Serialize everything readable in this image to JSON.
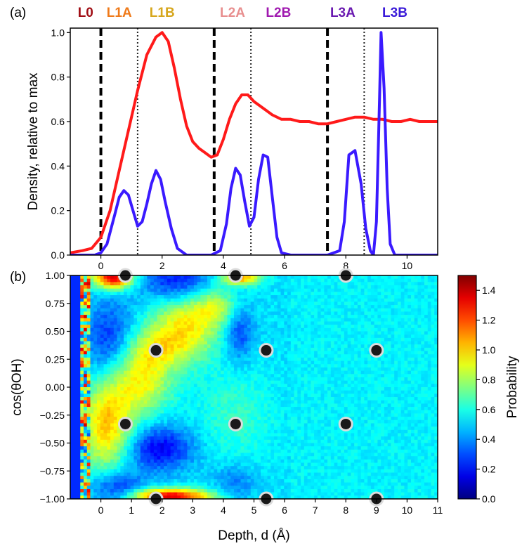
{
  "figure": {
    "panel_a_label": "(a)",
    "panel_b_label": "(b)"
  },
  "layer_labels": [
    {
      "text": "L0",
      "color": "#a00d14",
      "x": -0.5
    },
    {
      "text": "L1A",
      "color": "#ef7a1a",
      "x": 0.6
    },
    {
      "text": "L1B",
      "color": "#d6a61c",
      "x": 2.0
    },
    {
      "text": "L2A",
      "color": "#e88f8f",
      "x": 4.3
    },
    {
      "text": "L2B",
      "color": "#a01ab0",
      "x": 5.8
    },
    {
      "text": "L3A",
      "color": "#6a1ab0",
      "x": 7.9
    },
    {
      "text": "L3B",
      "color": "#3a1ad8",
      "x": 9.6
    }
  ],
  "chart_data": [
    {
      "id": "panel-a",
      "type": "line",
      "ylabel": "Density, relative to max",
      "xlabel": "",
      "xlim": [
        -1,
        11
      ],
      "ylim": [
        0,
        1.02
      ],
      "xticks": [
        0,
        2,
        4,
        6,
        8,
        10
      ],
      "xtick_labels": [
        "0",
        "2",
        "4",
        "6",
        "8",
        "10"
      ],
      "yticks": [
        0,
        0.2,
        0.4,
        0.6,
        0.8,
        1.0
      ],
      "ytick_labels": [
        "0.0",
        "0.2",
        "0.4",
        "0.6",
        "0.8",
        "1.0"
      ],
      "vlines_dashed": [
        0,
        3.7,
        7.4
      ],
      "vlines_dotted": [
        1.2,
        4.9,
        8.6
      ],
      "series": [
        {
          "name": "red",
          "color": "#ff1a1a",
          "x": [
            -1.0,
            -0.6,
            -0.3,
            0.0,
            0.3,
            0.6,
            0.9,
            1.2,
            1.5,
            1.8,
            2.0,
            2.2,
            2.4,
            2.6,
            2.8,
            3.0,
            3.2,
            3.4,
            3.6,
            3.8,
            4.0,
            4.2,
            4.4,
            4.6,
            4.8,
            5.0,
            5.3,
            5.6,
            5.9,
            6.2,
            6.5,
            6.8,
            7.1,
            7.4,
            7.7,
            8.0,
            8.3,
            8.6,
            8.9,
            9.2,
            9.5,
            9.8,
            10.1,
            10.4,
            10.7,
            11.0
          ],
          "y": [
            0.01,
            0.02,
            0.03,
            0.08,
            0.2,
            0.38,
            0.56,
            0.74,
            0.9,
            0.98,
            1.0,
            0.96,
            0.84,
            0.7,
            0.58,
            0.51,
            0.48,
            0.46,
            0.44,
            0.45,
            0.52,
            0.61,
            0.68,
            0.72,
            0.72,
            0.69,
            0.66,
            0.63,
            0.61,
            0.61,
            0.6,
            0.6,
            0.59,
            0.59,
            0.6,
            0.61,
            0.62,
            0.62,
            0.61,
            0.61,
            0.6,
            0.6,
            0.61,
            0.6,
            0.6,
            0.6
          ]
        },
        {
          "name": "blue",
          "color": "#3a1aff",
          "x": [
            -1.0,
            -0.2,
            0.0,
            0.2,
            0.45,
            0.6,
            0.75,
            0.9,
            1.05,
            1.2,
            1.35,
            1.5,
            1.65,
            1.8,
            1.95,
            2.1,
            2.3,
            2.5,
            2.8,
            3.2,
            3.6,
            3.9,
            4.1,
            4.25,
            4.4,
            4.55,
            4.7,
            4.85,
            5.0,
            5.15,
            5.3,
            5.45,
            5.6,
            5.75,
            5.9,
            6.2,
            6.6,
            7.0,
            7.4,
            7.8,
            7.95,
            8.1,
            8.3,
            8.5,
            8.65,
            8.8,
            8.9,
            9.0,
            9.1,
            9.15,
            9.25,
            9.35,
            9.45,
            9.6,
            10.0,
            11.0
          ],
          "y": [
            0.0,
            0.0,
            0.01,
            0.05,
            0.18,
            0.26,
            0.29,
            0.27,
            0.2,
            0.13,
            0.15,
            0.23,
            0.32,
            0.38,
            0.34,
            0.24,
            0.12,
            0.03,
            0.0,
            0.0,
            0.0,
            0.02,
            0.14,
            0.3,
            0.39,
            0.36,
            0.24,
            0.13,
            0.17,
            0.34,
            0.45,
            0.44,
            0.26,
            0.08,
            0.01,
            0.0,
            0.0,
            0.0,
            0.0,
            0.02,
            0.15,
            0.45,
            0.47,
            0.32,
            0.12,
            0.02,
            0.0,
            0.15,
            0.7,
            1.0,
            0.75,
            0.3,
            0.05,
            0.0,
            0.0,
            0.0
          ]
        }
      ]
    },
    {
      "id": "panel-b",
      "type": "heatmap",
      "xlabel": "Depth, d (Å)",
      "ylabel": "cos(θOH)",
      "xlim": [
        -1,
        11
      ],
      "ylim": [
        -1,
        1
      ],
      "xticks": [
        0,
        1,
        2,
        3,
        4,
        5,
        6,
        7,
        8,
        9,
        10,
        11
      ],
      "xtick_labels": [
        "0",
        "1",
        "2",
        "3",
        "4",
        "5",
        "6",
        "7",
        "8",
        "9",
        "10",
        "11"
      ],
      "yticks": [
        1.0,
        0.75,
        0.5,
        0.25,
        0.0,
        -0.25,
        -0.5,
        -0.75,
        -1.0
      ],
      "ytick_labels": [
        "1.00",
        "0.75",
        "0.50",
        "0.25",
        "0.00",
        "−0.25",
        "−0.50",
        "−0.75",
        "−1.00"
      ],
      "colorbar": {
        "label": "Probability",
        "range": [
          0,
          1.5
        ],
        "ticks": [
          0.0,
          0.2,
          0.4,
          0.6,
          0.8,
          1.0,
          1.2,
          1.4
        ],
        "tick_labels": [
          "0.0",
          "0.2",
          "0.4",
          "0.6",
          "0.8",
          "1.0",
          "1.2",
          "1.4"
        ],
        "colormap": "jet"
      },
      "markers": [
        {
          "x": 0.8,
          "y": 1.0
        },
        {
          "x": 4.4,
          "y": 1.0
        },
        {
          "x": 8.0,
          "y": 1.0
        },
        {
          "x": 1.8,
          "y": 0.33
        },
        {
          "x": 5.4,
          "y": 0.33
        },
        {
          "x": 9.0,
          "y": 0.33
        },
        {
          "x": 0.8,
          "y": -0.33
        },
        {
          "x": 4.4,
          "y": -0.33
        },
        {
          "x": 8.0,
          "y": -0.33
        },
        {
          "x": 1.8,
          "y": -1.0
        },
        {
          "x": 5.4,
          "y": -1.0
        },
        {
          "x": 9.0,
          "y": -1.0
        }
      ],
      "blobs": [
        {
          "x": 0.4,
          "y": 0.98,
          "sx": 0.45,
          "sy": 0.07,
          "a": 0.85
        },
        {
          "x": 1.9,
          "y": 0.35,
          "sx": 0.9,
          "sy": 0.14,
          "a": 0.3
        },
        {
          "x": 2.8,
          "y": 0.6,
          "sx": 0.8,
          "sy": 0.2,
          "a": 0.4
        },
        {
          "x": 3.8,
          "y": 0.72,
          "sx": 0.5,
          "sy": 0.12,
          "a": 0.25
        },
        {
          "x": 1.3,
          "y": 0.05,
          "sx": 0.7,
          "sy": 0.2,
          "a": 0.4
        },
        {
          "x": 0.2,
          "y": -0.35,
          "sx": 0.6,
          "sy": 0.3,
          "a": 0.5
        },
        {
          "x": 2.3,
          "y": -0.98,
          "sx": 0.9,
          "sy": 0.05,
          "a": 0.85
        },
        {
          "x": 4.6,
          "y": 0.98,
          "sx": 0.45,
          "sy": 0.05,
          "a": 0.55
        },
        {
          "x": 4.4,
          "y": -0.25,
          "sx": 0.9,
          "sy": 0.3,
          "a": 0.12
        },
        {
          "x": 1.9,
          "y": -0.55,
          "sx": 0.8,
          "sy": 0.14,
          "a": -0.35
        },
        {
          "x": 2.5,
          "y": 0.95,
          "sx": 0.8,
          "sy": 0.15,
          "a": -0.35
        },
        {
          "x": 4.5,
          "y": 0.5,
          "sx": 0.35,
          "sy": 0.18,
          "a": -0.25
        },
        {
          "x": 0.3,
          "y": 0.4,
          "sx": 0.6,
          "sy": 0.25,
          "a": -0.3
        },
        {
          "x": 0.5,
          "y": -0.9,
          "sx": 0.6,
          "sy": 0.12,
          "a": -0.3
        },
        {
          "x": 4.4,
          "y": -0.85,
          "sx": 0.5,
          "sy": 0.12,
          "a": -0.15
        }
      ]
    }
  ]
}
